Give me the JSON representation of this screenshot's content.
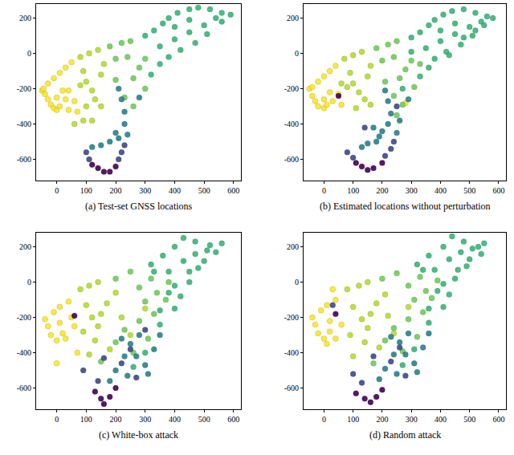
{
  "chart_data": [
    {
      "type": "scatter",
      "title": "(a) Test-set GNSS locations",
      "marker": "circle",
      "xlim": [
        -70,
        625
      ],
      "ylim": [
        -720,
        280
      ],
      "xticks": [
        0,
        100,
        200,
        300,
        400,
        500,
        600
      ],
      "yticks": [
        -600,
        -400,
        -200,
        0,
        200
      ],
      "series": [
        {
          "color": "#fde725",
          "x": [
            -50,
            -40,
            -30,
            -20,
            -10,
            0,
            10,
            -45,
            -30,
            -10,
            10,
            30,
            50,
            20,
            40,
            0,
            30,
            60,
            40,
            70
          ],
          "values": [
            -210,
            -230,
            -260,
            -290,
            -310,
            -320,
            -300,
            -200,
            -170,
            -140,
            -110,
            -80,
            -50,
            -210,
            -210,
            -250,
            -260,
            -270,
            -320,
            -330
          ]
        },
        {
          "color": "#b5de2b",
          "x": [
            80,
            110,
            140,
            90,
            100,
            120,
            130,
            80,
            150,
            160,
            100,
            150,
            120,
            90,
            60
          ],
          "values": [
            -20,
            0,
            20,
            -100,
            -160,
            -210,
            -260,
            -180,
            -120,
            -60,
            -300,
            -300,
            -380,
            -380,
            -400
          ]
        },
        {
          "color": "#6ece58",
          "x": [
            180,
            220,
            250,
            200,
            240,
            200,
            260,
            280,
            300,
            230,
            260,
            300
          ],
          "values": [
            40,
            60,
            70,
            -30,
            -20,
            -150,
            -140,
            -80,
            -30,
            -250,
            -300,
            -200
          ]
        },
        {
          "color": "#35b779",
          "x": [
            300,
            330,
            360,
            380,
            410,
            450,
            480,
            520,
            560,
            590,
            350,
            400,
            450,
            500,
            540,
            380,
            420,
            470,
            510,
            560,
            350,
            320,
            400,
            450
          ],
          "values": [
            100,
            130,
            170,
            200,
            230,
            250,
            260,
            250,
            230,
            220,
            40,
            80,
            120,
            160,
            200,
            -20,
            20,
            60,
            110,
            180,
            -60,
            -120,
            150,
            190
          ]
        },
        {
          "color": "#26828e",
          "x": [
            210,
            220,
            230,
            230,
            200,
            210,
            180,
            150,
            120,
            240,
            280
          ],
          "values": [
            -200,
            -260,
            -330,
            -400,
            -450,
            -480,
            -500,
            -520,
            -530,
            -460,
            -250
          ]
        },
        {
          "color": "#3e4989",
          "x": [
            100,
            110,
            220,
            230,
            210
          ],
          "values": [
            -560,
            -600,
            -560,
            -520,
            -600
          ]
        },
        {
          "color": "#440154",
          "x": [
            120,
            140,
            160,
            180,
            200
          ],
          "values": [
            -630,
            -650,
            -670,
            -670,
            -640
          ]
        }
      ]
    },
    {
      "type": "scatter",
      "title": "(b) Estimated locations without perturbation",
      "marker": "circle",
      "xlim": [
        -70,
        625
      ],
      "ylim": [
        -720,
        280
      ],
      "xticks": [
        0,
        100,
        200,
        300,
        400,
        500,
        600
      ],
      "yticks": [
        -600,
        -400,
        -200,
        0,
        200
      ],
      "series": [
        {
          "color": "#fde725",
          "x": [
            -50,
            -40,
            -30,
            -20,
            0,
            10,
            -40,
            -20,
            0,
            20,
            40,
            20,
            50,
            0,
            30,
            60,
            280
          ],
          "values": [
            -200,
            -240,
            -270,
            -300,
            -310,
            -290,
            -190,
            -160,
            -130,
            -100,
            -70,
            -220,
            -230,
            -260,
            -270,
            -290,
            -280
          ]
        },
        {
          "color": "#b5de2b",
          "x": [
            70,
            100,
            130,
            90,
            100,
            120,
            140,
            80,
            150,
            160,
            110,
            160,
            60
          ],
          "values": [
            -30,
            -10,
            10,
            -110,
            -170,
            -220,
            -260,
            -190,
            -130,
            -70,
            -310,
            -290,
            -170
          ]
        },
        {
          "color": "#6ece58",
          "x": [
            180,
            220,
            250,
            200,
            240,
            210,
            260,
            280,
            300,
            240,
            270,
            310,
            330,
            250
          ],
          "values": [
            30,
            50,
            70,
            -40,
            -20,
            -160,
            -140,
            -90,
            -40,
            -240,
            -290,
            -190,
            -60,
            -350
          ]
        },
        {
          "color": "#35b779",
          "x": [
            300,
            330,
            360,
            380,
            410,
            440,
            480,
            520,
            560,
            580,
            350,
            400,
            450,
            500,
            540,
            380,
            420,
            470,
            510,
            550,
            360,
            330,
            400,
            450,
            430,
            480,
            520,
            300,
            270
          ],
          "values": [
            90,
            120,
            160,
            190,
            220,
            240,
            250,
            230,
            210,
            200,
            30,
            70,
            110,
            150,
            180,
            -30,
            10,
            50,
            100,
            160,
            -80,
            -130,
            130,
            170,
            -10,
            90,
            130,
            10,
            -200
          ]
        },
        {
          "color": "#26828e",
          "x": [
            210,
            220,
            230,
            220,
            200,
            190,
            180,
            150,
            130,
            250,
            290,
            170,
            260
          ],
          "values": [
            -210,
            -270,
            -340,
            -400,
            -440,
            -470,
            -500,
            -510,
            -530,
            -450,
            -260,
            -420,
            -380
          ]
        },
        {
          "color": "#3e4989",
          "x": [
            80,
            100,
            210,
            230,
            240,
            140,
            250
          ],
          "values": [
            -560,
            -590,
            -580,
            -540,
            -500,
            -420,
            -300
          ]
        },
        {
          "color": "#440154",
          "x": [
            110,
            130,
            150,
            170,
            200,
            50
          ],
          "values": [
            -620,
            -640,
            -660,
            -650,
            -620,
            -240
          ]
        }
      ]
    },
    {
      "type": "scatter",
      "title": "(c) White-box attack",
      "marker": "circle",
      "xlim": [
        -70,
        625
      ],
      "ylim": [
        -720,
        280
      ],
      "xticks": [
        0,
        100,
        200,
        300,
        400,
        500,
        600
      ],
      "yticks": [
        -600,
        -400,
        -200,
        0,
        200
      ],
      "series": [
        {
          "color": "#fde725",
          "x": [
            -40,
            -30,
            -20,
            0,
            20,
            -10,
            10,
            40,
            10,
            60,
            30,
            70,
            0,
            50
          ],
          "values": [
            -210,
            -250,
            -300,
            -330,
            -290,
            -170,
            -140,
            -110,
            -230,
            -250,
            -320,
            -400,
            -460,
            -200
          ]
        },
        {
          "color": "#b5de2b",
          "x": [
            80,
            110,
            140,
            100,
            120,
            90,
            140,
            170,
            130,
            180,
            150,
            200,
            220,
            110,
            250,
            300
          ],
          "values": [
            -40,
            -20,
            0,
            -130,
            -200,
            -280,
            -250,
            -120,
            -330,
            -380,
            -180,
            -60,
            -200,
            -410,
            -300,
            -150
          ]
        },
        {
          "color": "#6ece58",
          "x": [
            200,
            250,
            280,
            320,
            300,
            340,
            230,
            280,
            330,
            200,
            260,
            370,
            150,
            310,
            380
          ],
          "values": [
            20,
            60,
            -30,
            20,
            -110,
            -60,
            -270,
            -220,
            -180,
            -340,
            -400,
            -100,
            -450,
            -320,
            0
          ]
        },
        {
          "color": "#35b779",
          "x": [
            320,
            360,
            400,
            430,
            470,
            520,
            560,
            380,
            430,
            470,
            510,
            400,
            450,
            500,
            540,
            420,
            350,
            300,
            260,
            450,
            480,
            350,
            400,
            330,
            380
          ],
          "values": [
            100,
            150,
            200,
            250,
            230,
            210,
            220,
            60,
            120,
            160,
            180,
            -20,
            60,
            120,
            170,
            -80,
            -240,
            -400,
            -480,
            0,
            80,
            -160,
            -150,
            60,
            -60
          ]
        },
        {
          "color": "#26828e",
          "x": [
            220,
            250,
            270,
            300,
            240,
            200,
            330,
            280,
            180,
            350,
            310,
            230
          ],
          "values": [
            -320,
            -350,
            -420,
            -470,
            -530,
            -500,
            -380,
            -300,
            -560,
            -300,
            -520,
            -420
          ]
        },
        {
          "color": "#3e4989",
          "x": [
            140,
            90,
            250,
            220,
            160,
            270,
            300
          ],
          "values": [
            -560,
            -500,
            -380,
            -460,
            -430,
            -540,
            -270
          ]
        },
        {
          "color": "#440154",
          "x": [
            130,
            150,
            160,
            180,
            200,
            60
          ],
          "values": [
            -620,
            -660,
            -690,
            -650,
            -600,
            -190
          ]
        }
      ]
    },
    {
      "type": "scatter",
      "title": "(d) Random attack",
      "marker": "circle",
      "xlim": [
        -70,
        625
      ],
      "ylim": [
        -720,
        280
      ],
      "xticks": [
        0,
        100,
        200,
        300,
        400,
        500,
        600
      ],
      "yticks": [
        -600,
        -400,
        -200,
        0,
        200
      ],
      "series": [
        {
          "color": "#fde725",
          "x": [
            -40,
            -30,
            -20,
            0,
            20,
            -10,
            10,
            40,
            20,
            60,
            40,
            30,
            10
          ],
          "values": [
            -200,
            -240,
            -290,
            -320,
            -280,
            -160,
            -130,
            -100,
            -220,
            -240,
            -320,
            -40,
            -350
          ]
        },
        {
          "color": "#b5de2b",
          "x": [
            80,
            120,
            150,
            100,
            130,
            90,
            150,
            180,
            140,
            190,
            160,
            210,
            220,
            100,
            240,
            290
          ],
          "values": [
            -40,
            -20,
            0,
            -140,
            -210,
            -300,
            -260,
            -120,
            -340,
            -370,
            -180,
            -70,
            -190,
            -420,
            -290,
            -140
          ]
        },
        {
          "color": "#6ece58",
          "x": [
            200,
            250,
            290,
            330,
            310,
            350,
            240,
            290,
            340,
            210,
            270,
            370,
            170,
            320,
            390
          ],
          "values": [
            20,
            50,
            -20,
            30,
            -100,
            -50,
            -260,
            -210,
            -170,
            -330,
            -390,
            -90,
            -460,
            -310,
            10
          ]
        },
        {
          "color": "#35b779",
          "x": [
            320,
            360,
            410,
            440,
            480,
            530,
            550,
            380,
            430,
            470,
            510,
            410,
            460,
            500,
            540,
            430,
            360,
            310,
            270,
            450,
            490,
            360,
            410,
            340,
            390
          ],
          "values": [
            100,
            150,
            200,
            260,
            230,
            200,
            220,
            70,
            130,
            170,
            190,
            -10,
            70,
            130,
            160,
            -70,
            -230,
            -380,
            -470,
            20,
            90,
            -150,
            -140,
            70,
            -50
          ]
        },
        {
          "color": "#26828e",
          "x": [
            230,
            260,
            280,
            310,
            250,
            210,
            340,
            290,
            190,
            360,
            320,
            240
          ],
          "values": [
            -310,
            -340,
            -410,
            -460,
            -520,
            -490,
            -370,
            -290,
            -550,
            -290,
            -510,
            -410
          ]
        },
        {
          "color": "#3e4989",
          "x": [
            130,
            100,
            260,
            230,
            170,
            280,
            30
          ],
          "values": [
            -570,
            -520,
            -370,
            -450,
            -420,
            -530,
            -130
          ]
        },
        {
          "color": "#440154",
          "x": [
            110,
            140,
            160,
            180,
            200,
            40
          ],
          "values": [
            -630,
            -660,
            -680,
            -650,
            -610,
            -180
          ]
        }
      ]
    }
  ]
}
